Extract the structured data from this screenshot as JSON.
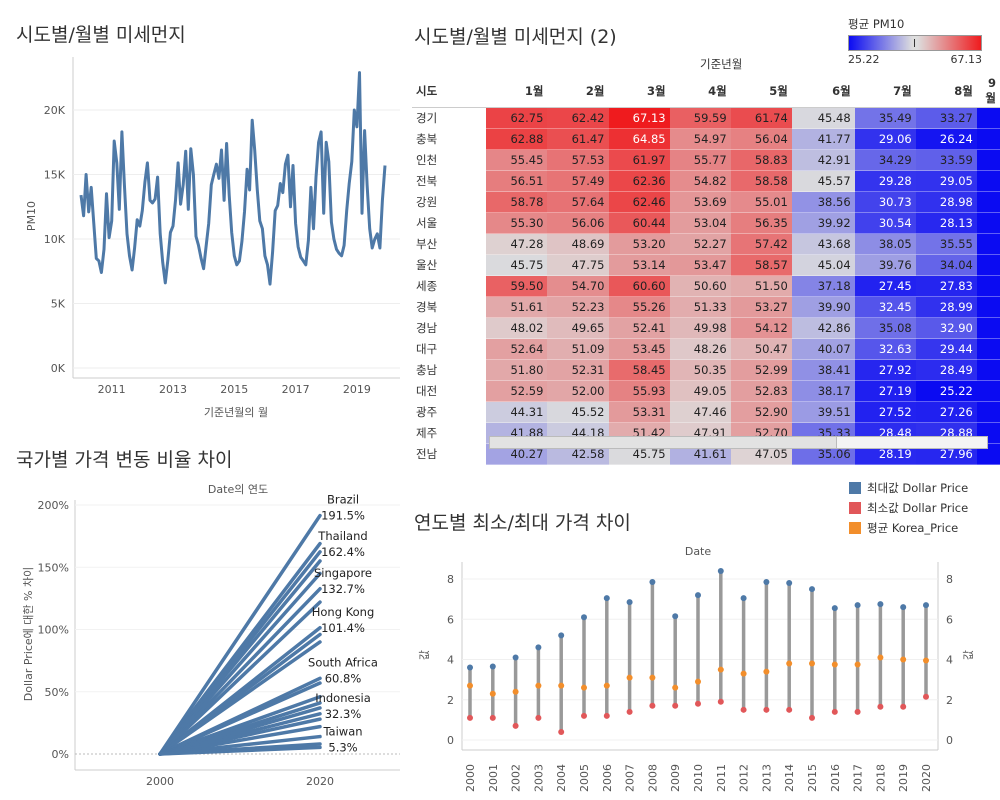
{
  "titles": {
    "panel1": "시도별/월별 미세먼지",
    "panel2": "시도별/월별 미세먼지 (2)",
    "panel3": "국가별 가격 변동 비율 차이",
    "panel4": "연도별 최소/최대 가격 차이"
  },
  "colors": {
    "line": "#4e79a7",
    "red": "#e6393b",
    "blue": "#1b1bf0",
    "max": "#4e79a7",
    "min": "#e15759",
    "avg": "#f28e2b"
  },
  "chart_data": [
    {
      "type": "line",
      "title": "시도별/월별 미세먼지",
      "xlabel": "기준년월의 월",
      "ylabel": "PM10",
      "x_ticks": [
        "2011",
        "2013",
        "2015",
        "2017",
        "2019"
      ],
      "y_ticks": [
        "0K",
        "5K",
        "10K",
        "15K",
        "20K"
      ],
      "ylim": [
        0,
        23500
      ],
      "x_start": "2010-01",
      "x_end": "2020-01",
      "values": [
        13400,
        11800,
        15000,
        12100,
        14000,
        11200,
        8500,
        8300,
        7400,
        9200,
        13500,
        10100,
        11400,
        17600,
        15900,
        12300,
        18300,
        14200,
        10400,
        8700,
        7600,
        9300,
        11500,
        11000,
        12200,
        14400,
        15900,
        13000,
        12800,
        13100,
        14800,
        10400,
        8200,
        6600,
        8400,
        10500,
        11000,
        13000,
        15900,
        12700,
        14200,
        16800,
        12300,
        17000,
        15000,
        10200,
        9500,
        8500,
        7700,
        9500,
        11200,
        14200,
        15000,
        15800,
        14700,
        16900,
        13000,
        17400,
        13400,
        10500,
        8700,
        8000,
        8300,
        9800,
        12100,
        15400,
        13800,
        19200,
        16900,
        13800,
        11400,
        10800,
        8700,
        8000,
        6500,
        9000,
        12200,
        12600,
        14300,
        13600,
        15800,
        16500,
        12500,
        15700,
        11200,
        9400,
        8600,
        8300,
        8000,
        9900,
        14000,
        10800,
        14800,
        17500,
        18300,
        12000,
        17500,
        16000,
        11300,
        10000,
        9200,
        8900,
        8700,
        9500,
        12200,
        14300,
        16000,
        20000,
        18700,
        22900,
        12000,
        18400,
        14200,
        10800,
        9300,
        10000,
        10400,
        9300,
        13000,
        15700
      ]
    },
    {
      "type": "heatmap",
      "title": "시도별/월별 미세먼지 (2)",
      "column_header": "기준년월",
      "row_header": "시도",
      "legend_title": "평균 PM10",
      "legend_min": "25.22",
      "legend_max": "67.13",
      "columns": [
        "1월",
        "2월",
        "3월",
        "4월",
        "5월",
        "6월",
        "7월",
        "8월",
        "9월"
      ],
      "rows": [
        {
          "label": "경기",
          "values": [
            62.75,
            62.42,
            67.13,
            59.59,
            61.74,
            45.48,
            35.49,
            33.27,
            null
          ]
        },
        {
          "label": "충북",
          "values": [
            62.88,
            61.47,
            64.85,
            54.97,
            56.04,
            41.77,
            29.06,
            26.24,
            null
          ]
        },
        {
          "label": "인천",
          "values": [
            55.45,
            57.53,
            61.97,
            55.77,
            58.83,
            42.91,
            34.29,
            33.59,
            null
          ]
        },
        {
          "label": "전북",
          "values": [
            56.51,
            57.49,
            62.36,
            54.82,
            58.58,
            45.57,
            29.28,
            29.05,
            null
          ]
        },
        {
          "label": "강원",
          "values": [
            58.78,
            57.64,
            62.46,
            53.69,
            55.01,
            38.56,
            30.73,
            28.98,
            null
          ]
        },
        {
          "label": "서울",
          "values": [
            55.3,
            56.06,
            60.44,
            53.04,
            56.35,
            39.92,
            30.54,
            28.13,
            null
          ]
        },
        {
          "label": "부산",
          "values": [
            47.28,
            48.69,
            53.2,
            52.27,
            57.42,
            43.68,
            38.05,
            35.55,
            null
          ]
        },
        {
          "label": "울산",
          "values": [
            45.75,
            47.75,
            53.14,
            53.47,
            58.57,
            45.04,
            39.76,
            34.04,
            null
          ]
        },
        {
          "label": "세종",
          "values": [
            59.5,
            54.7,
            60.6,
            50.6,
            51.5,
            37.18,
            27.45,
            27.83,
            null
          ]
        },
        {
          "label": "경북",
          "values": [
            51.61,
            52.23,
            55.26,
            51.33,
            53.27,
            39.9,
            32.45,
            28.99,
            null
          ]
        },
        {
          "label": "경남",
          "values": [
            48.02,
            49.65,
            52.41,
            49.98,
            54.12,
            42.86,
            35.08,
            32.9,
            null
          ]
        },
        {
          "label": "대구",
          "values": [
            52.64,
            51.09,
            53.45,
            48.26,
            50.47,
            40.07,
            32.63,
            29.44,
            null
          ]
        },
        {
          "label": "충남",
          "values": [
            51.8,
            52.31,
            58.45,
            50.35,
            52.99,
            38.41,
            27.92,
            28.49,
            null
          ]
        },
        {
          "label": "대전",
          "values": [
            52.59,
            52.0,
            55.93,
            49.05,
            52.83,
            38.17,
            27.19,
            25.22,
            null
          ]
        },
        {
          "label": "광주",
          "values": [
            44.31,
            45.52,
            53.31,
            47.46,
            52.9,
            39.51,
            27.52,
            27.26,
            null
          ]
        },
        {
          "label": "제주",
          "values": [
            41.88,
            44.18,
            51.42,
            47.91,
            52.7,
            35.33,
            28.48,
            28.88,
            null
          ]
        },
        {
          "label": "전남",
          "values": [
            40.27,
            42.58,
            45.75,
            41.61,
            47.05,
            35.06,
            28.19,
            27.96,
            null
          ]
        }
      ]
    },
    {
      "type": "line",
      "title": "국가별 가격 변동 비율 차이",
      "column_title": "Date의 연도",
      "ylabel": "Dollar Price에 대한 % 차이",
      "x_ticks": [
        "2000",
        "2020"
      ],
      "y_ticks": [
        "0%",
        "50%",
        "100%",
        "150%",
        "200%"
      ],
      "ylim": [
        -5,
        205
      ],
      "series_end_values": [
        191.5,
        169,
        162.4,
        155,
        145,
        132.7,
        122,
        101.4,
        96,
        90,
        60.8,
        57,
        46,
        41,
        37,
        32.3,
        28,
        22,
        14,
        8,
        5.3
      ],
      "labels": [
        {
          "name": "Brazil",
          "value": "191.5%",
          "at": 191.5
        },
        {
          "name": "Thailand",
          "value": "162.4%",
          "at": 162.4
        },
        {
          "name": "Singapore",
          "value": "132.7%",
          "at": 132.7
        },
        {
          "name": "Hong Kong",
          "value": "101.4%",
          "at": 101.4
        },
        {
          "name": "South Africa",
          "value": "60.8%",
          "at": 60.8
        },
        {
          "name": "Indonesia",
          "value": "32.3%",
          "at": 32.3
        },
        {
          "name": "Taiwan",
          "value": "5.3%",
          "at": 5.3
        }
      ]
    },
    {
      "type": "scatter",
      "title": "연도별 최소/최대 가격 차이",
      "column_title": "Date",
      "ylabel": "값",
      "y_ticks": [
        "0",
        "2",
        "4",
        "6",
        "8"
      ],
      "ylim": [
        -0.3,
        8.8
      ],
      "legend": [
        "최대값 Dollar Price",
        "최소값 Dollar Price",
        "평균 Korea_Price"
      ],
      "years": [
        "2000",
        "2001",
        "2002",
        "2003",
        "2004",
        "2005",
        "2006",
        "2007",
        "2008",
        "2009",
        "2010",
        "2011",
        "2012",
        "2013",
        "2014",
        "2015",
        "2016",
        "2017",
        "2018",
        "2019",
        "2020"
      ],
      "max": [
        3.6,
        3.65,
        4.1,
        4.6,
        5.2,
        6.1,
        7.05,
        6.85,
        7.85,
        6.15,
        7.2,
        8.4,
        7.05,
        7.85,
        7.8,
        7.5,
        6.55,
        6.7,
        6.75,
        6.6,
        6.7
      ],
      "min": [
        1.1,
        1.1,
        0.7,
        1.1,
        0.4,
        1.2,
        1.2,
        1.4,
        1.7,
        1.7,
        1.8,
        1.9,
        1.5,
        1.5,
        1.5,
        1.1,
        1.4,
        1.4,
        1.65,
        1.65,
        2.15
      ],
      "avg": [
        2.7,
        2.3,
        2.4,
        2.7,
        2.7,
        2.6,
        2.7,
        3.1,
        3.1,
        2.6,
        2.9,
        3.5,
        3.3,
        3.4,
        3.8,
        3.8,
        3.75,
        3.75,
        4.1,
        4.0,
        3.95
      ]
    }
  ]
}
